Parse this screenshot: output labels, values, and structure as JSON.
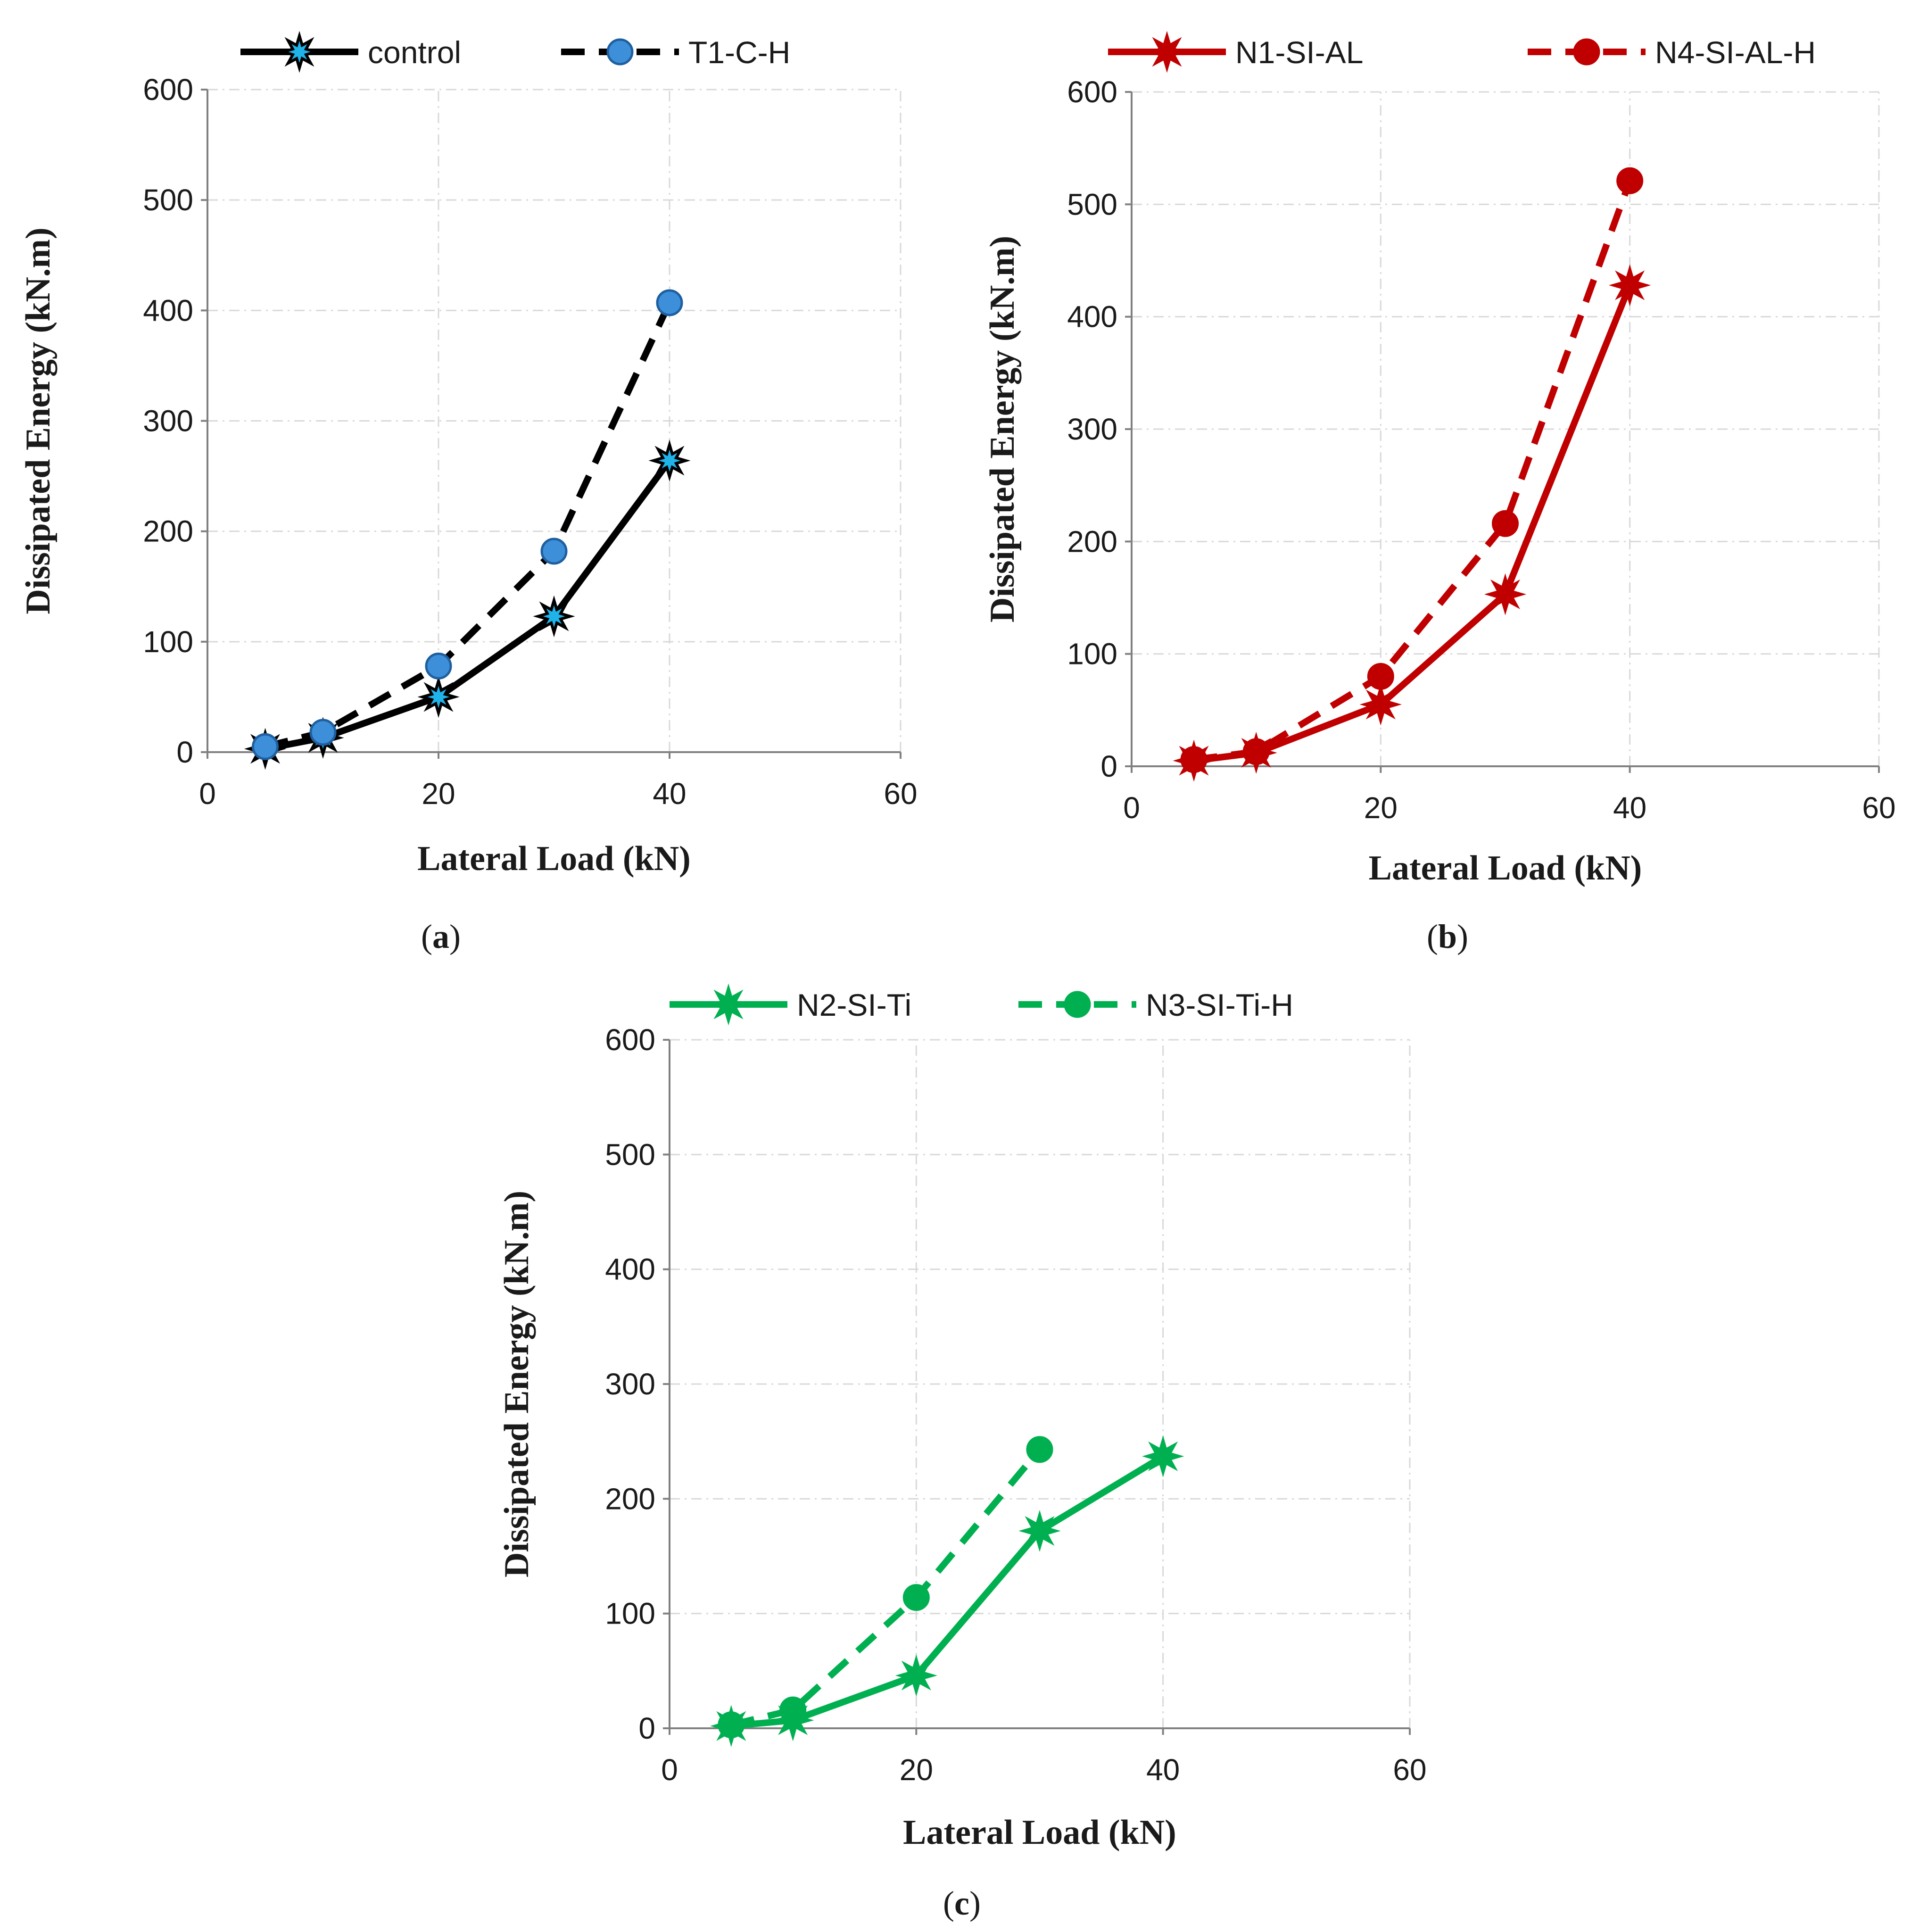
{
  "chart_data": [
    {
      "type": "line",
      "panel": "a",
      "caption_letter": "a",
      "xlabel": "Lateral Load (kN)",
      "ylabel": "Dissipated Energy (kN.m)",
      "xlim": [
        0,
        60
      ],
      "ylim": [
        0,
        600
      ],
      "xticks": [
        0,
        20,
        40,
        60
      ],
      "yticks": [
        0,
        100,
        200,
        300,
        400,
        500,
        600
      ],
      "grid": true,
      "legend_position": "top",
      "series": [
        {
          "name": "control",
          "style": "solid",
          "marker": "star",
          "line_color": "#000000",
          "marker_color": "#1fb3ea",
          "x": [
            5,
            10,
            20,
            30,
            40
          ],
          "y": [
            3,
            13,
            50,
            123,
            264
          ]
        },
        {
          "name": "T1-C-H",
          "style": "dashed",
          "marker": "circle",
          "line_color": "#000000",
          "marker_color": "#3c8fd8",
          "x": [
            5,
            10,
            20,
            30,
            40
          ],
          "y": [
            5,
            18,
            78,
            182,
            407
          ]
        }
      ]
    },
    {
      "type": "line",
      "panel": "b",
      "caption_letter": "b",
      "xlabel": "Lateral Load (kN)",
      "ylabel": "Dissipated Energy (kN.m)",
      "xlim": [
        0,
        60
      ],
      "ylim": [
        0,
        600
      ],
      "xticks": [
        0,
        20,
        40,
        60
      ],
      "yticks": [
        0,
        100,
        200,
        300,
        400,
        500,
        600
      ],
      "grid": true,
      "legend_position": "top",
      "series": [
        {
          "name": "N1-SI-AL",
          "style": "solid",
          "marker": "star",
          "line_color": "#c00000",
          "marker_color": "#c00000",
          "x": [
            5,
            10,
            20,
            30,
            40
          ],
          "y": [
            5,
            12,
            55,
            153,
            428
          ]
        },
        {
          "name": "N4-SI-AL-H",
          "style": "dashed",
          "marker": "circle",
          "line_color": "#c00000",
          "marker_color": "#c00000",
          "x": [
            5,
            10,
            20,
            30,
            40
          ],
          "y": [
            6,
            13,
            80,
            216,
            521
          ]
        }
      ]
    },
    {
      "type": "line",
      "panel": "c",
      "caption_letter": "c",
      "xlabel": "Lateral Load (kN)",
      "ylabel": "Dissipated Energy (kN.m)",
      "xlim": [
        0,
        60
      ],
      "ylim": [
        0,
        600
      ],
      "xticks": [
        0,
        20,
        40,
        60
      ],
      "yticks": [
        0,
        100,
        200,
        300,
        400,
        500,
        600
      ],
      "grid": true,
      "legend_position": "top",
      "series": [
        {
          "name": "N2-SI-Ti",
          "style": "solid",
          "marker": "star",
          "line_color": "#00b050",
          "marker_color": "#00b050",
          "x": [
            5,
            10,
            20,
            30,
            40
          ],
          "y": [
            2,
            7,
            46,
            172,
            237
          ]
        },
        {
          "name": "N3-SI-Ti-H",
          "style": "dashed",
          "marker": "circle",
          "line_color": "#00b050",
          "marker_color": "#00b050",
          "x": [
            5,
            10,
            20,
            30
          ],
          "y": [
            3,
            16,
            114,
            243
          ]
        }
      ]
    }
  ]
}
